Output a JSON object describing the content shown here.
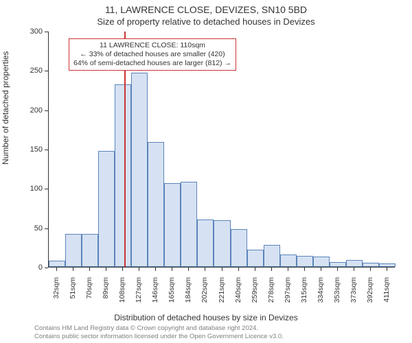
{
  "title": "11, LAWRENCE CLOSE, DEVIZES, SN10 5BD",
  "subtitle": "Size of property relative to detached houses in Devizes",
  "ylabel": "Number of detached properties",
  "xlabel": "Distribution of detached houses by size in Devizes",
  "attribution_line1": "Contains HM Land Registry data © Crown copyright and database right 2024.",
  "attribution_line2": "Contains public sector information licensed under the Open Government Licence v3.0.",
  "chart": {
    "type": "histogram",
    "background_color": "#ffffff",
    "bar_fill": "#d6e2f3",
    "bar_stroke": "#5b83ba",
    "axis_color": "#333333",
    "reference_line_color": "#cc3333",
    "ylim": [
      0,
      300
    ],
    "yticks": [
      0,
      50,
      100,
      150,
      200,
      250,
      300
    ],
    "xticks": [
      32,
      51,
      70,
      89,
      108,
      127,
      146,
      165,
      184,
      202,
      221,
      240,
      259,
      278,
      297,
      315,
      334,
      353,
      373,
      392,
      411
    ],
    "xtick_unit": "sqm",
    "x_start": 23,
    "x_bin_width": 19,
    "values": [
      8,
      42,
      42,
      147,
      232,
      247,
      159,
      106,
      108,
      60,
      59,
      48,
      22,
      28,
      16,
      14,
      13,
      6,
      9,
      5,
      4
    ],
    "reference_value_x": 110,
    "annotation": {
      "line1": "11 LAWRENCE CLOSE: 110sqm",
      "line2": "← 33% of detached houses are smaller (420)",
      "line3": "64% of semi-detached houses are larger (812) →"
    },
    "title_fontsize": 14,
    "subtitle_fontsize": 13,
    "label_fontsize": 12,
    "tick_fontsize": 11,
    "xtick_fontsize": 10.5,
    "annot_fontsize": 10.5,
    "attribution_fontsize": 9.5,
    "attribution_color": "#808080"
  }
}
